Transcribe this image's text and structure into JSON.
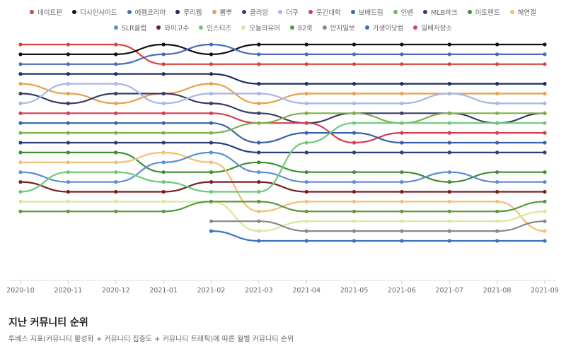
{
  "chart_data": {
    "type": "line",
    "subtype": "bump",
    "x": [
      "2020-10",
      "2020-11",
      "2020-12",
      "2021-01",
      "2021-02",
      "2021-03",
      "2021-04",
      "2021-05",
      "2021-06",
      "2021-07",
      "2021-08",
      "2021-09"
    ],
    "y_meaning": "rank (1 = top)",
    "ylim": [
      1,
      22
    ],
    "grid": false,
    "legend_position": "top",
    "series": [
      {
        "name": "네이트판",
        "color": "#d9453d",
        "values": [
          1,
          1,
          1,
          3,
          3,
          3,
          3,
          3,
          3,
          3,
          3,
          3
        ]
      },
      {
        "name": "디시인사이드",
        "color": "#111111",
        "values": [
          2,
          2,
          2,
          1,
          2,
          1,
          1,
          1,
          1,
          1,
          1,
          1
        ]
      },
      {
        "name": "에펨코리아",
        "color": "#4a6cb8",
        "values": [
          3,
          3,
          3,
          2,
          1,
          2,
          2,
          2,
          2,
          2,
          2,
          2
        ]
      },
      {
        "name": "루리웹",
        "color": "#1d2a63",
        "values": [
          4,
          4,
          4,
          4,
          4,
          5,
          5,
          5,
          5,
          5,
          5,
          5
        ]
      },
      {
        "name": "뽐뿌",
        "color": "#e8a04c",
        "values": [
          5,
          6,
          7,
          6,
          5,
          7,
          6,
          6,
          6,
          6,
          6,
          6
        ]
      },
      {
        "name": "클리앙",
        "color": "#3b3b6b",
        "values": [
          6,
          7,
          6,
          6,
          7,
          8,
          9,
          8,
          8,
          8,
          9,
          8
        ]
      },
      {
        "name": "더쿠",
        "color": "#a9b5e6",
        "values": [
          7,
          5,
          5,
          7,
          6,
          6,
          7,
          7,
          7,
          6,
          7,
          7
        ]
      },
      {
        "name": "웃긴대학",
        "color": "#d43d52",
        "values": [
          8,
          8,
          8,
          8,
          8,
          9,
          9,
          11,
          10,
          10,
          10,
          10
        ]
      },
      {
        "name": "보배드림",
        "color": "#3a62a8",
        "values": [
          9,
          9,
          9,
          9,
          9,
          11,
          10,
          10,
          11,
          11,
          11,
          11
        ]
      },
      {
        "name": "인벤",
        "color": "#7bb34a",
        "values": [
          10,
          10,
          10,
          10,
          10,
          9,
          8,
          8,
          9,
          8,
          8,
          8
        ]
      },
      {
        "name": "MLB파크",
        "color": "#2c3e7a",
        "values": [
          11,
          11,
          11,
          11,
          11,
          12,
          12,
          12,
          12,
          12,
          12,
          12
        ]
      },
      {
        "name": "이토렌트",
        "color": "#3f8f2f",
        "values": [
          12,
          12,
          12,
          14,
          14,
          13,
          14,
          14,
          14,
          15,
          14,
          14
        ]
      },
      {
        "name": "해연갤",
        "color": "#f0c078",
        "values": [
          13,
          13,
          13,
          12,
          13,
          18,
          17,
          17,
          17,
          17,
          17,
          20
        ]
      },
      {
        "name": "SLR클럽",
        "color": "#5b8fd4",
        "values": [
          14,
          15,
          15,
          13,
          12,
          14,
          15,
          15,
          15,
          14,
          15,
          15
        ]
      },
      {
        "name": "와이고수",
        "color": "#7a1f1f",
        "values": [
          15,
          16,
          16,
          16,
          15,
          15,
          16,
          16,
          16,
          16,
          16,
          16
        ]
      },
      {
        "name": "인스티즈",
        "color": "#6cc97a",
        "values": [
          16,
          14,
          14,
          15,
          16,
          16,
          11,
          9,
          9,
          9,
          9,
          9
        ]
      },
      {
        "name": "오늘의유머",
        "color": "#d9e89a",
        "values": [
          17,
          17,
          17,
          17,
          17,
          20,
          19,
          19,
          19,
          19,
          19,
          18
        ]
      },
      {
        "name": "82쿡",
        "color": "#5a9a3a",
        "values": [
          18,
          18,
          18,
          18,
          17,
          17,
          18,
          18,
          18,
          18,
          18,
          17
        ]
      },
      {
        "name": "만지일보",
        "color": "#888888",
        "values": [
          null,
          null,
          null,
          null,
          19,
          19,
          20,
          20,
          20,
          20,
          20,
          19
        ]
      },
      {
        "name": "가생이닷컴",
        "color": "#3d6fbf",
        "values": [
          null,
          null,
          null,
          null,
          20,
          21,
          21,
          21,
          21,
          21,
          21,
          21
        ]
      },
      {
        "name": "일베저장소",
        "color": "#e04050",
        "values": [
          null,
          null,
          null,
          null,
          null,
          3,
          null,
          null,
          null,
          null,
          null,
          null
        ]
      }
    ]
  },
  "caption": {
    "title": "지난 커뮤니티 순위",
    "subtitle": "투베스 지표(커뮤니티 활성화 + 커뮤니티 집중도 + 커뮤니티 트래픽)에 따른 월별 커뮤니티 순위"
  }
}
